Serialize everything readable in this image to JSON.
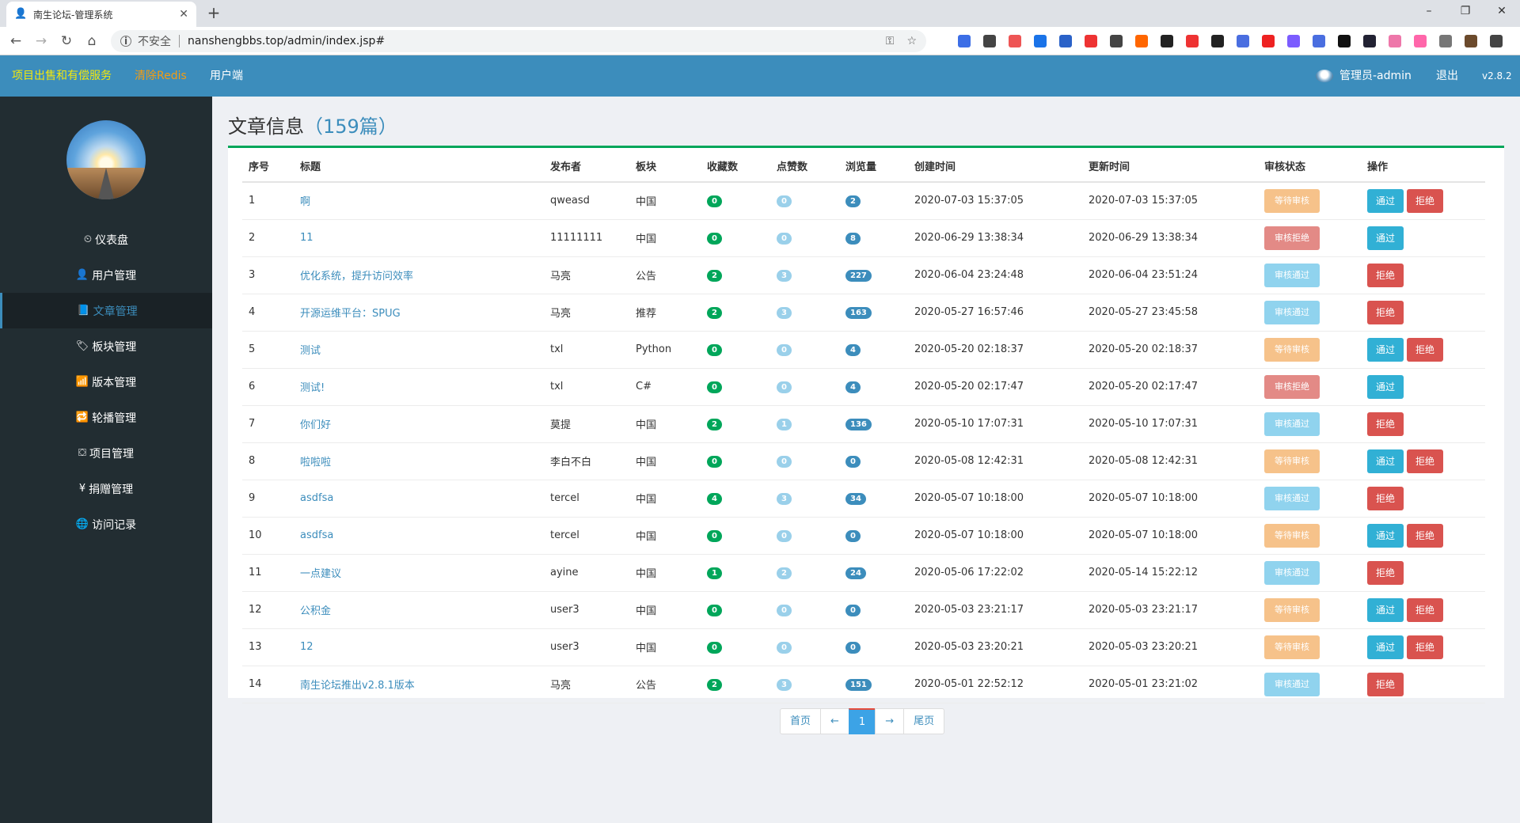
{
  "browser": {
    "tab_title": "南生论坛-管理系统",
    "insecure_label": "不安全",
    "url": "nanshengbbs.top/admin/index.jsp#"
  },
  "header": {
    "links": [
      "项目出售和有偿服务",
      "清除Redis",
      "用户端"
    ],
    "link_colors": [
      "#f5e90a",
      "#f39c12",
      "#ffffff"
    ],
    "admin_label": "管理员-admin",
    "logout": "退出",
    "version": "v2.8.2"
  },
  "sidebar": {
    "items": [
      {
        "icon": "dashboard-icon",
        "glyph": "⏲",
        "label": "仪表盘"
      },
      {
        "icon": "user-icon",
        "glyph": "👤",
        "label": "用户管理"
      },
      {
        "icon": "book-icon",
        "glyph": "📘",
        "label": "文章管理",
        "active": true
      },
      {
        "icon": "tag-icon",
        "glyph": "🏷",
        "label": "板块管理"
      },
      {
        "icon": "signal-icon",
        "glyph": "📶",
        "label": "版本管理"
      },
      {
        "icon": "retweet-icon",
        "glyph": "🔁",
        "label": "轮播管理"
      },
      {
        "icon": "project-icon",
        "glyph": "⛋",
        "label": "项目管理"
      },
      {
        "icon": "yen-icon",
        "glyph": "¥",
        "label": "捐赠管理"
      },
      {
        "icon": "globe-icon",
        "glyph": "🌐",
        "label": "访问记录"
      }
    ]
  },
  "page": {
    "title": "文章信息",
    "count": "（159篇）"
  },
  "table": {
    "headers": [
      "序号",
      "标题",
      "发布者",
      "板块",
      "收藏数",
      "点赞数",
      "浏览量",
      "创建时间",
      "更新时间",
      "审核状态",
      "操作"
    ],
    "rows": [
      {
        "no": "1",
        "title": "啊",
        "author": "qweasd",
        "board": "中国",
        "fav": "0",
        "like": "0",
        "view": "2",
        "created": "2020-07-03 15:37:05",
        "updated": "2020-07-03 15:37:05",
        "status": "等待审核",
        "status_kind": "wait",
        "actions": [
          "通过",
          "拒绝"
        ]
      },
      {
        "no": "2",
        "title": "11",
        "author": "11111111",
        "board": "中国",
        "fav": "0",
        "like": "0",
        "view": "8",
        "created": "2020-06-29 13:38:34",
        "updated": "2020-06-29 13:38:34",
        "status": "审核拒绝",
        "status_kind": "rej",
        "actions": [
          "通过"
        ]
      },
      {
        "no": "3",
        "title": "优化系统，提升访问效率",
        "author": "马亮",
        "board": "公告",
        "fav": "2",
        "like": "3",
        "view": "227",
        "created": "2020-06-04 23:24:48",
        "updated": "2020-06-04 23:51:24",
        "status": "审核通过",
        "status_kind": "ok",
        "actions": [
          "拒绝"
        ]
      },
      {
        "no": "4",
        "title": "开源运维平台：SPUG",
        "author": "马亮",
        "board": "推荐",
        "fav": "2",
        "like": "3",
        "view": "163",
        "created": "2020-05-27 16:57:46",
        "updated": "2020-05-27 23:45:58",
        "status": "审核通过",
        "status_kind": "ok",
        "actions": [
          "拒绝"
        ]
      },
      {
        "no": "5",
        "title": "测试",
        "author": "txl",
        "board": "Python",
        "fav": "0",
        "like": "0",
        "view": "4",
        "created": "2020-05-20 02:18:37",
        "updated": "2020-05-20 02:18:37",
        "status": "等待审核",
        "status_kind": "wait",
        "actions": [
          "通过",
          "拒绝"
        ]
      },
      {
        "no": "6",
        "title": "测试!",
        "author": "txl",
        "board": "C#",
        "fav": "0",
        "like": "0",
        "view": "4",
        "created": "2020-05-20 02:17:47",
        "updated": "2020-05-20 02:17:47",
        "status": "审核拒绝",
        "status_kind": "rej",
        "actions": [
          "通过"
        ]
      },
      {
        "no": "7",
        "title": "你们好",
        "author": "莫提",
        "board": "中国",
        "fav": "2",
        "like": "1",
        "view": "136",
        "created": "2020-05-10 17:07:31",
        "updated": "2020-05-10 17:07:31",
        "status": "审核通过",
        "status_kind": "ok",
        "actions": [
          "拒绝"
        ]
      },
      {
        "no": "8",
        "title": "啦啦啦",
        "author": "李白不白",
        "board": "中国",
        "fav": "0",
        "like": "0",
        "view": "0",
        "created": "2020-05-08 12:42:31",
        "updated": "2020-05-08 12:42:31",
        "status": "等待审核",
        "status_kind": "wait",
        "actions": [
          "通过",
          "拒绝"
        ]
      },
      {
        "no": "9",
        "title": "asdfsa",
        "author": "tercel",
        "board": "中国",
        "fav": "4",
        "like": "3",
        "view": "34",
        "created": "2020-05-07 10:18:00",
        "updated": "2020-05-07 10:18:00",
        "status": "审核通过",
        "status_kind": "ok",
        "actions": [
          "拒绝"
        ]
      },
      {
        "no": "10",
        "title": "asdfsa",
        "author": "tercel",
        "board": "中国",
        "fav": "0",
        "like": "0",
        "view": "0",
        "created": "2020-05-07 10:18:00",
        "updated": "2020-05-07 10:18:00",
        "status": "等待审核",
        "status_kind": "wait",
        "actions": [
          "通过",
          "拒绝"
        ]
      },
      {
        "no": "11",
        "title": "一点建议",
        "author": "ayine",
        "board": "中国",
        "fav": "1",
        "like": "2",
        "view": "24",
        "created": "2020-05-06 17:22:02",
        "updated": "2020-05-14 15:22:12",
        "status": "审核通过",
        "status_kind": "ok",
        "actions": [
          "拒绝"
        ]
      },
      {
        "no": "12",
        "title": "公积金",
        "author": "user3",
        "board": "中国",
        "fav": "0",
        "like": "0",
        "view": "0",
        "created": "2020-05-03 23:21:17",
        "updated": "2020-05-03 23:21:17",
        "status": "等待审核",
        "status_kind": "wait",
        "actions": [
          "通过",
          "拒绝"
        ]
      },
      {
        "no": "13",
        "title": "12",
        "author": "user3",
        "board": "中国",
        "fav": "0",
        "like": "0",
        "view": "0",
        "created": "2020-05-03 23:20:21",
        "updated": "2020-05-03 23:20:21",
        "status": "等待审核",
        "status_kind": "wait",
        "actions": [
          "通过",
          "拒绝"
        ]
      },
      {
        "no": "14",
        "title": "南生论坛推出v2.8.1版本",
        "author": "马亮",
        "board": "公告",
        "fav": "2",
        "like": "3",
        "view": "151",
        "created": "2020-05-01 22:52:12",
        "updated": "2020-05-01 23:21:02",
        "status": "审核通过",
        "status_kind": "ok",
        "actions": [
          "拒绝"
        ]
      }
    ]
  },
  "pager": {
    "first": "首页",
    "prev": "←",
    "current": "1",
    "next": "→",
    "last": "尾页"
  }
}
